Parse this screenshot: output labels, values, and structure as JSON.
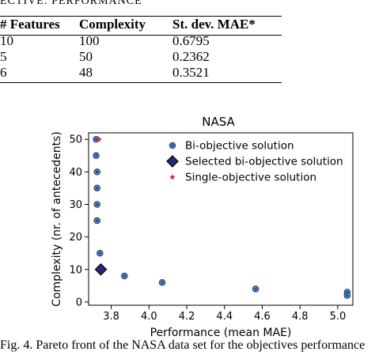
{
  "top_caption": "ECTIVE: PERFORMANCE",
  "table": {
    "headers": [
      "# Features",
      "Complexity",
      "St. dev. MAE*"
    ],
    "rows": [
      [
        "10",
        "100",
        "0.6795"
      ],
      [
        "5",
        "50",
        "0.2362"
      ],
      [
        "6",
        "48",
        "0.3521"
      ]
    ]
  },
  "figure_caption": "Fig. 4.  Pareto front of the NASA data set for the objectives performance",
  "colors": {
    "bi_fill": "#4f7fbf",
    "selected_fill": "#27277a",
    "single": "#d62728"
  },
  "chart_data": {
    "type": "scatter",
    "title": "NASA",
    "xlabel": "Performance (mean MAE)",
    "ylabel": "Complexity (nr. of antecedents)",
    "xlim": [
      3.68,
      5.08
    ],
    "ylim": [
      -1,
      52
    ],
    "xticks": [
      3.8,
      4.0,
      4.2,
      4.4,
      4.6,
      4.8,
      5.0
    ],
    "yticks": [
      0,
      10,
      20,
      30,
      40,
      50
    ],
    "legend_position": "top-right",
    "series": [
      {
        "name": "Bi-objective solution",
        "marker": "circle",
        "points": [
          [
            3.72,
            50
          ],
          [
            3.72,
            45
          ],
          [
            3.725,
            40
          ],
          [
            3.725,
            35
          ],
          [
            3.725,
            30
          ],
          [
            3.725,
            25
          ],
          [
            3.74,
            15
          ],
          [
            3.74,
            10
          ],
          [
            3.87,
            8
          ],
          [
            4.07,
            6
          ],
          [
            4.565,
            4
          ],
          [
            5.05,
            3
          ],
          [
            5.05,
            2
          ]
        ]
      },
      {
        "name": "Selected bi-objective solution",
        "marker": "diamond",
        "points": [
          [
            3.745,
            10
          ]
        ]
      },
      {
        "name": "Single-objective solution",
        "marker": "star",
        "points": [
          [
            3.735,
            50
          ]
        ]
      }
    ]
  }
}
